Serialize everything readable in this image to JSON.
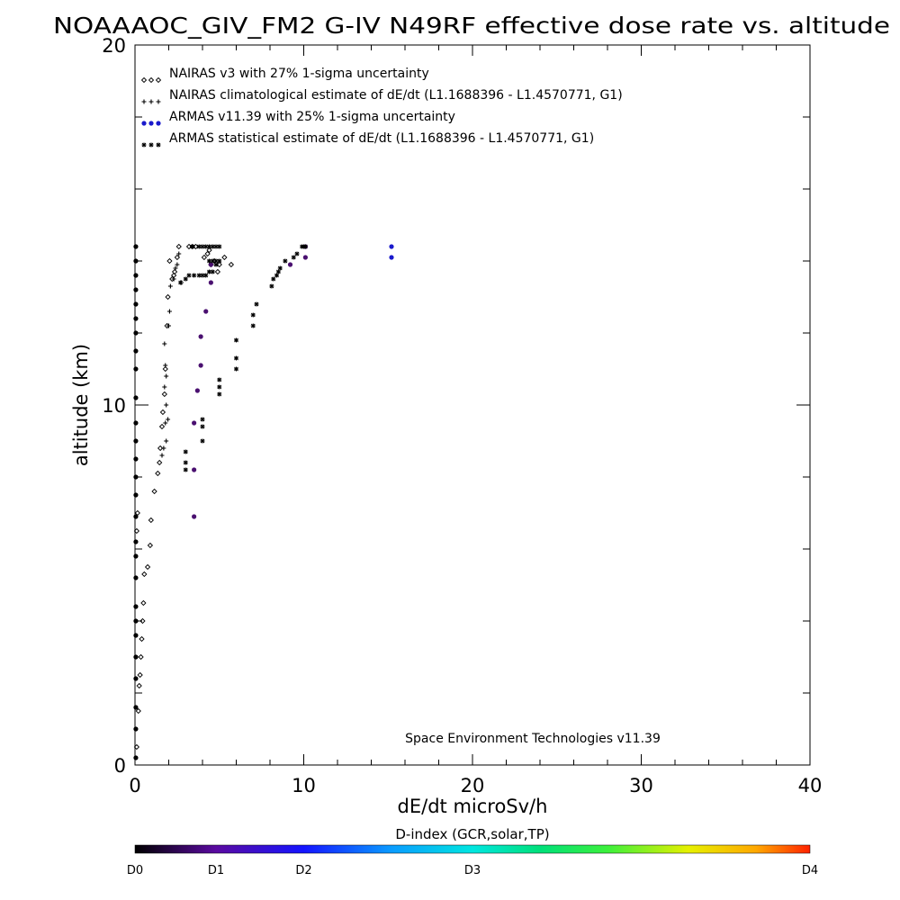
{
  "chart_data": {
    "type": "scatter",
    "title": "NOAAAOC_GIV_FM2 G-IV   N49RF  effective dose rate vs. altitude",
    "xlabel": "dE/dt microSv/h",
    "ylabel": "altitude (km)",
    "xlim": [
      0,
      40
    ],
    "ylim": [
      0,
      20
    ],
    "x_ticks": [
      0,
      10,
      20,
      30,
      40
    ],
    "y_ticks": [
      0,
      10,
      20
    ],
    "legend_position": "top-left",
    "credit": "Space Environment Technologies v11.39",
    "legend": [
      {
        "symbol": "◇◇◇",
        "label": "NAIRAS v3 with 27% 1-sigma uncertainty",
        "color": "#000000"
      },
      {
        "symbol": "+++",
        "label": "NAIRAS climatological estimate of dE/dt (L1.1688396 - L1.4570771, G1)",
        "color": "#000000"
      },
      {
        "symbol": "●●●",
        "label": "ARMAS v11.39 with 25% 1-sigma uncertainty",
        "color": "#1a1acc"
      },
      {
        "symbol": "***",
        "label": "ARMAS statistical estimate of dE/dt (L1.1688396 - L1.4570771, G1)",
        "color": "#000000"
      }
    ],
    "colorbar": {
      "title": "D-index (GCR,solar,TP)",
      "labels": [
        "D0",
        "D1",
        "D2",
        "D3",
        "D4"
      ],
      "label_positions": [
        0,
        0.12,
        0.25,
        0.5,
        1.0
      ]
    },
    "series": [
      {
        "name": "NAIRAS v3 with 27% 1-sigma uncertainty",
        "marker": "diamond",
        "points": [
          [
            0.1,
            0.5
          ],
          [
            0.2,
            1.5
          ],
          [
            0.25,
            2.2
          ],
          [
            0.3,
            2.5
          ],
          [
            0.35,
            3.0
          ],
          [
            0.4,
            3.5
          ],
          [
            0.45,
            4.0
          ],
          [
            0.5,
            4.5
          ],
          [
            0.55,
            5.3
          ],
          [
            0.75,
            5.5
          ],
          [
            0.9,
            6.1
          ],
          [
            0.1,
            6.5
          ],
          [
            0.95,
            6.8
          ],
          [
            0.15,
            7.0
          ],
          [
            1.15,
            7.6
          ],
          [
            1.35,
            8.1
          ],
          [
            1.45,
            8.4
          ],
          [
            1.5,
            8.8
          ],
          [
            1.6,
            9.4
          ],
          [
            1.65,
            9.8
          ],
          [
            1.75,
            10.3
          ],
          [
            1.8,
            11.0
          ],
          [
            1.9,
            12.2
          ],
          [
            1.95,
            13.0
          ],
          [
            2.2,
            13.5
          ],
          [
            2.3,
            13.6
          ],
          [
            2.35,
            13.7
          ],
          [
            2.05,
            14.0
          ],
          [
            2.5,
            14.1
          ],
          [
            2.6,
            14.4
          ],
          [
            3.2,
            14.4
          ],
          [
            3.4,
            14.4
          ],
          [
            3.6,
            14.4
          ],
          [
            4.1,
            14.1
          ],
          [
            4.3,
            14.2
          ],
          [
            4.5,
            13.9
          ],
          [
            4.7,
            14.0
          ],
          [
            5.0,
            13.9
          ],
          [
            5.3,
            14.1
          ],
          [
            5.7,
            13.9
          ],
          [
            4.9,
            13.7
          ],
          [
            4.4,
            14.3
          ]
        ]
      },
      {
        "name": "NAIRAS climatological estimate of dE/dt (L1.1688396 - L1.4570771, G1)",
        "marker": "plus",
        "points": [
          [
            1.6,
            8.6
          ],
          [
            1.7,
            8.8
          ],
          [
            1.85,
            9.0
          ],
          [
            1.8,
            9.5
          ],
          [
            1.95,
            9.6
          ],
          [
            1.85,
            10.0
          ],
          [
            1.75,
            10.5
          ],
          [
            1.85,
            10.8
          ],
          [
            1.8,
            11.1
          ],
          [
            1.75,
            11.7
          ],
          [
            2.0,
            12.2
          ],
          [
            2.05,
            12.6
          ],
          [
            2.1,
            13.3
          ],
          [
            2.4,
            13.8
          ],
          [
            2.5,
            13.9
          ],
          [
            2.6,
            14.2
          ],
          [
            2.3,
            13.5
          ],
          [
            2.75,
            13.4
          ]
        ]
      },
      {
        "name": "ARMAS v11.39 with 25% 1-sigma uncertainty",
        "marker": "dot",
        "points": [
          [
            0.05,
            0.2
          ],
          [
            0.05,
            1.0
          ],
          [
            0.05,
            1.6
          ],
          [
            0.05,
            2.4
          ],
          [
            0.05,
            3.0
          ],
          [
            0.05,
            3.6
          ],
          [
            0.05,
            4.0
          ],
          [
            0.05,
            4.4
          ],
          [
            0.05,
            5.2
          ],
          [
            0.05,
            5.8
          ],
          [
            0.05,
            6.2
          ],
          [
            0.05,
            6.9
          ],
          [
            0.05,
            7.5
          ],
          [
            0.05,
            8.0
          ],
          [
            0.05,
            8.5
          ],
          [
            0.05,
            9.0
          ],
          [
            0.05,
            9.5
          ],
          [
            0.05,
            10.2
          ],
          [
            0.05,
            11.0
          ],
          [
            0.05,
            11.5
          ],
          [
            0.05,
            12.0
          ],
          [
            0.05,
            12.4
          ],
          [
            0.05,
            12.8
          ],
          [
            0.05,
            13.2
          ],
          [
            0.05,
            13.6
          ],
          [
            0.05,
            14.0
          ],
          [
            0.05,
            14.4
          ],
          [
            3.5,
            6.9
          ],
          [
            3.5,
            8.2
          ],
          [
            3.5,
            9.5
          ],
          [
            3.7,
            10.4
          ],
          [
            3.9,
            11.1
          ],
          [
            3.9,
            11.9
          ],
          [
            4.2,
            12.6
          ],
          [
            4.5,
            13.4
          ],
          [
            4.5,
            13.9
          ],
          [
            9.2,
            13.9
          ],
          [
            10.1,
            14.1
          ],
          [
            10.1,
            14.4
          ],
          [
            15.2,
            14.1
          ],
          [
            15.2,
            14.4
          ]
        ]
      },
      {
        "name": "ARMAS statistical estimate of dE/dt (L1.1688396 - L1.4570771, G1)",
        "marker": "star",
        "points": [
          [
            3.0,
            8.2
          ],
          [
            3.0,
            8.4
          ],
          [
            3.0,
            8.7
          ],
          [
            4.0,
            9.0
          ],
          [
            4.0,
            9.4
          ],
          [
            4.0,
            9.6
          ],
          [
            5.0,
            10.3
          ],
          [
            5.0,
            10.5
          ],
          [
            5.0,
            10.7
          ],
          [
            6.0,
            11.0
          ],
          [
            6.0,
            11.3
          ],
          [
            6.0,
            11.8
          ],
          [
            7.0,
            12.2
          ],
          [
            7.0,
            12.5
          ],
          [
            7.2,
            12.8
          ],
          [
            8.1,
            13.3
          ],
          [
            8.4,
            13.6
          ],
          [
            8.6,
            13.8
          ],
          [
            8.9,
            14.0
          ],
          [
            8.2,
            13.5
          ],
          [
            8.5,
            13.7
          ],
          [
            9.4,
            14.1
          ],
          [
            9.6,
            14.2
          ],
          [
            9.9,
            14.4
          ],
          [
            10.0,
            14.4
          ],
          [
            10.1,
            14.4
          ],
          [
            2.7,
            13.4
          ],
          [
            3.0,
            13.5
          ],
          [
            3.2,
            13.6
          ],
          [
            3.5,
            13.6
          ],
          [
            3.8,
            13.6
          ],
          [
            4.0,
            13.6
          ],
          [
            4.2,
            13.6
          ],
          [
            4.4,
            13.7
          ],
          [
            4.6,
            13.7
          ],
          [
            4.8,
            13.9
          ],
          [
            3.4,
            14.4
          ],
          [
            3.8,
            14.4
          ],
          [
            4.0,
            14.4
          ],
          [
            4.2,
            14.4
          ],
          [
            4.4,
            14.4
          ],
          [
            4.6,
            14.4
          ],
          [
            4.8,
            14.4
          ],
          [
            5.0,
            14.4
          ],
          [
            4.4,
            14.0
          ],
          [
            4.6,
            14.0
          ],
          [
            4.8,
            14.0
          ],
          [
            5.0,
            14.0
          ]
        ]
      }
    ]
  }
}
